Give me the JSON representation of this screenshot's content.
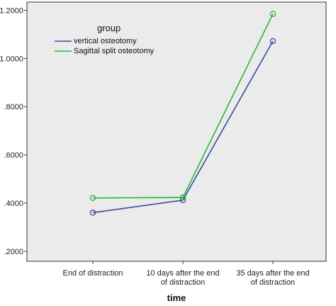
{
  "chart_data": {
    "type": "line",
    "title": "",
    "xlabel": "time",
    "ylabel": "",
    "categories": [
      "End of distraction",
      "10 days after the end of distraction",
      "35 days after the end of distraction"
    ],
    "category_lines": [
      [
        "End of distraction"
      ],
      [
        "10 days after the end",
        "of distraction"
      ],
      [
        "35 days after the end",
        "of distraction"
      ]
    ],
    "ylim": [
      0.1583,
      1.2339
    ],
    "yticks": [
      0.2,
      0.4,
      0.6,
      0.8,
      1.0,
      1.2
    ],
    "ytick_labels": [
      ".2000",
      ".4000",
      ".6000",
      ".8000",
      "1.0000",
      "1.2000"
    ],
    "legend_title": "group",
    "legend_position": "top-left",
    "grid": false,
    "series": [
      {
        "name": "vertical osteotomy",
        "color": "#3b4aa0",
        "values": [
          0.36,
          0.412,
          1.072
        ]
      },
      {
        "name": "Sagittal split osteotomy",
        "color": "#2fb33a",
        "values": [
          0.421,
          0.423,
          1.185
        ]
      }
    ],
    "plot_background": "#ebebeb"
  }
}
